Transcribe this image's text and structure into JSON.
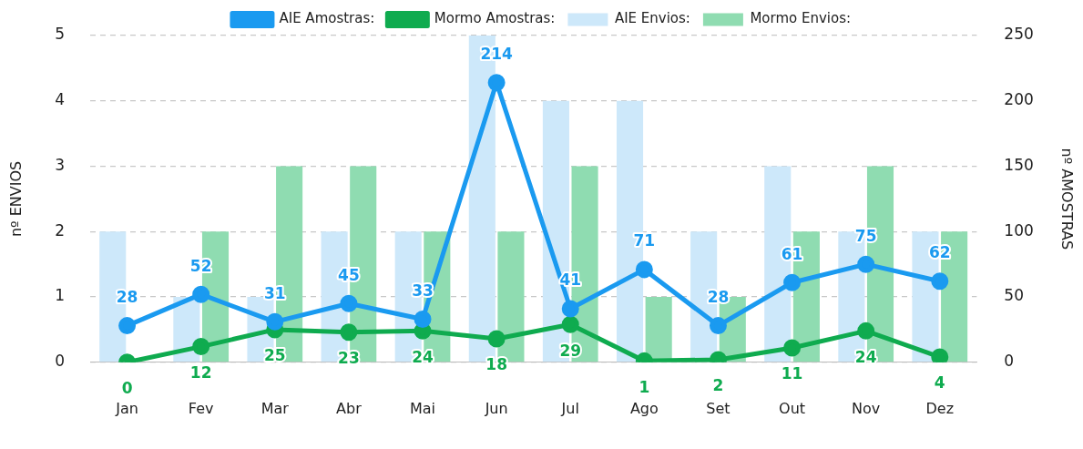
{
  "chart_data": {
    "type": "bar",
    "categories": [
      "Jan",
      "Fev",
      "Mar",
      "Abr",
      "Mai",
      "Jun",
      "Jul",
      "Ago",
      "Set",
      "Out",
      "Nov",
      "Dez"
    ],
    "ylabel": "nº ENVIOS",
    "y2label": "nº AMOSTRAS",
    "ylim": [
      0,
      5
    ],
    "yticks": [
      0,
      1,
      2,
      3,
      4,
      5
    ],
    "y2lim": [
      0,
      250
    ],
    "y2ticks": [
      0,
      50,
      100,
      150,
      200,
      250
    ],
    "grid": "y",
    "legend": "top",
    "marker": "circle",
    "line_style": "solid",
    "series": [
      {
        "name": "AIE Envios:",
        "type": "bar",
        "color": "#cde8fa",
        "values": [
          2,
          1,
          1,
          2,
          2,
          5,
          4,
          4,
          2,
          3,
          2,
          2
        ]
      },
      {
        "name": "Mormo Envios:",
        "type": "bar",
        "color": "#8fdcb1",
        "values": [
          0,
          2,
          3,
          3,
          2,
          2,
          3,
          1,
          1,
          2,
          3,
          2
        ]
      },
      {
        "name": "AIE Amostras:",
        "type": "line",
        "axis": "y2",
        "color": "#1a9af0",
        "values": [
          28,
          52,
          31,
          45,
          33,
          214,
          41,
          71,
          28,
          61,
          75,
          62
        ],
        "value_labels": [
          "28",
          "52",
          "31",
          "45",
          "33",
          "214",
          "41",
          "71",
          "28",
          "61",
          "75",
          "62"
        ]
      },
      {
        "name": "Mormo Amostras:",
        "type": "line",
        "axis": "y2",
        "color": "#0fab4f",
        "values": [
          0,
          12,
          25,
          23,
          24,
          18,
          29,
          1,
          2,
          11,
          24,
          4
        ],
        "value_labels": [
          "0",
          "12",
          "25",
          "23",
          "24",
          "18",
          "29",
          "1",
          "2",
          "11",
          "24",
          "4"
        ]
      }
    ]
  }
}
